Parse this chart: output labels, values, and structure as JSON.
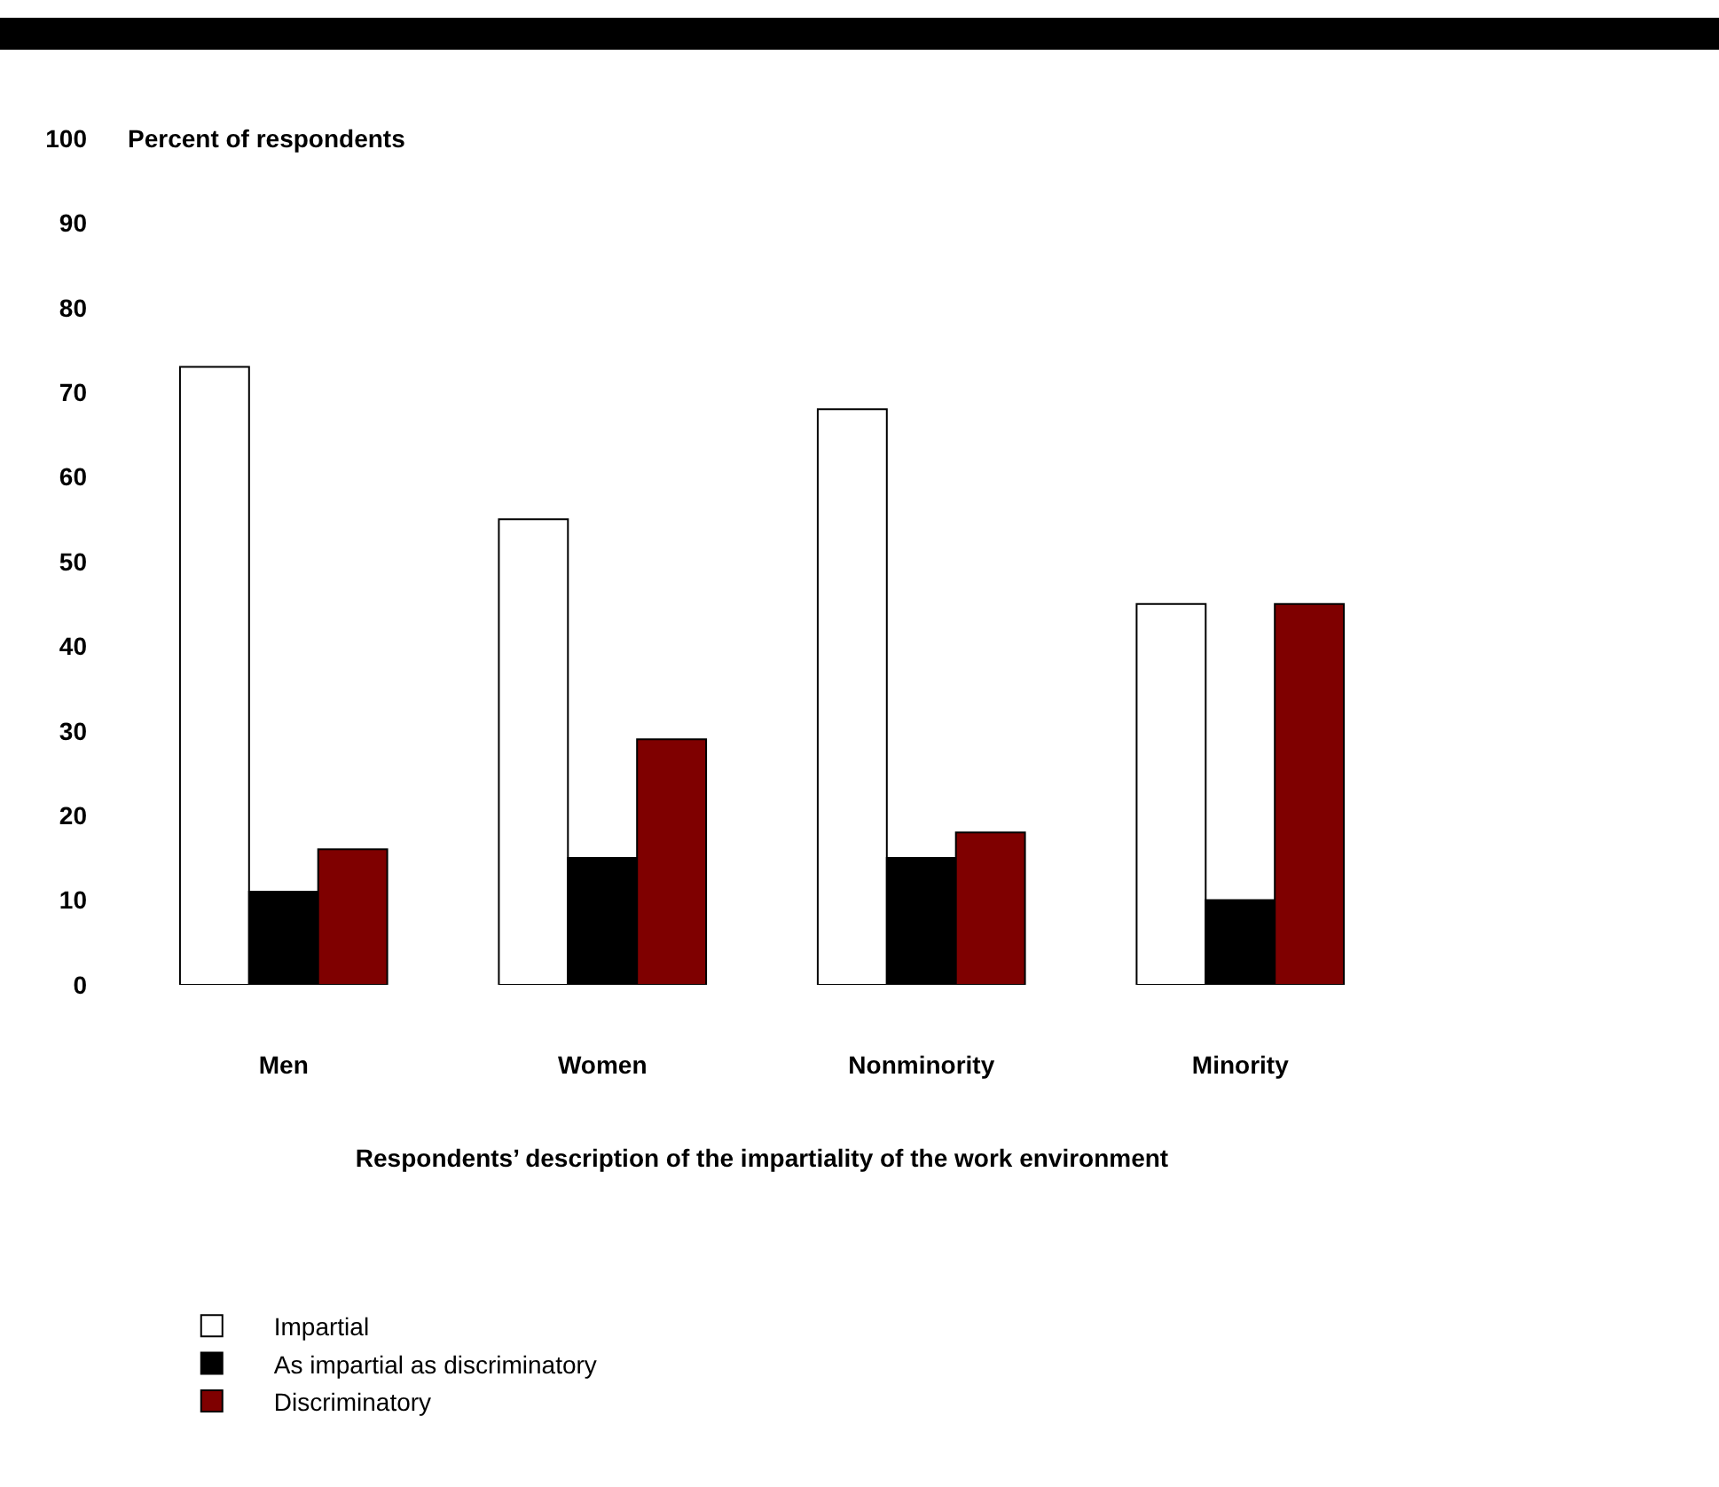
{
  "chart_data": {
    "type": "bar",
    "ylabel": "Percent of respondents",
    "xlabel": "Respondents’ description of the impartiality of the work environment",
    "categories": [
      "Men",
      "Women",
      "Nonminority",
      "Minority"
    ],
    "series": [
      {
        "name": "Impartial",
        "color": "#ffffff",
        "values": [
          73,
          55,
          68,
          45
        ]
      },
      {
        "name": "As impartial as discriminatory",
        "color": "#000000",
        "values": [
          11,
          15,
          15,
          10
        ]
      },
      {
        "name": "Discriminatory",
        "color": "#7f0000",
        "values": [
          16,
          29,
          18,
          45
        ]
      }
    ],
    "ylim": [
      0,
      100
    ],
    "yticks": [
      0,
      10,
      20,
      30,
      40,
      50,
      60,
      70,
      80,
      90,
      100
    ],
    "grid": false,
    "legend": "bottom left"
  }
}
